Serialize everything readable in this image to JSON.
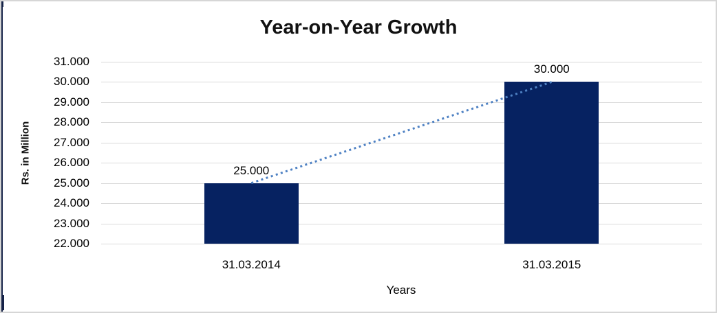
{
  "chart_data": {
    "type": "bar",
    "title": "Year-on-Year Growth",
    "xlabel": "Years",
    "ylabel": "Rs. in Million",
    "categories": [
      "31.03.2014",
      "31.03.2015"
    ],
    "values": [
      25000,
      30000
    ],
    "data_labels": [
      "25.000",
      "30.000"
    ],
    "series": [
      {
        "name": "Rs. in Million",
        "values": [
          25000,
          30000
        ]
      }
    ],
    "ylim": [
      22000,
      31000
    ],
    "ytick_step": 1000,
    "ytick_labels": [
      "31.000",
      "30.000",
      "29.000",
      "28.000",
      "27.000",
      "26.000",
      "25.000",
      "24.000",
      "23.000",
      "22.000"
    ],
    "grid": true,
    "legend_position": "none",
    "trendline": {
      "style": "dotted",
      "connects": "bar-tops"
    },
    "colors": {
      "bar": "#062261",
      "gridline": "#d9d9d9",
      "trendline": "#4e81c3",
      "text": "#000000",
      "frame_border": "#d6d6d6",
      "left_edge": "#152247"
    }
  }
}
